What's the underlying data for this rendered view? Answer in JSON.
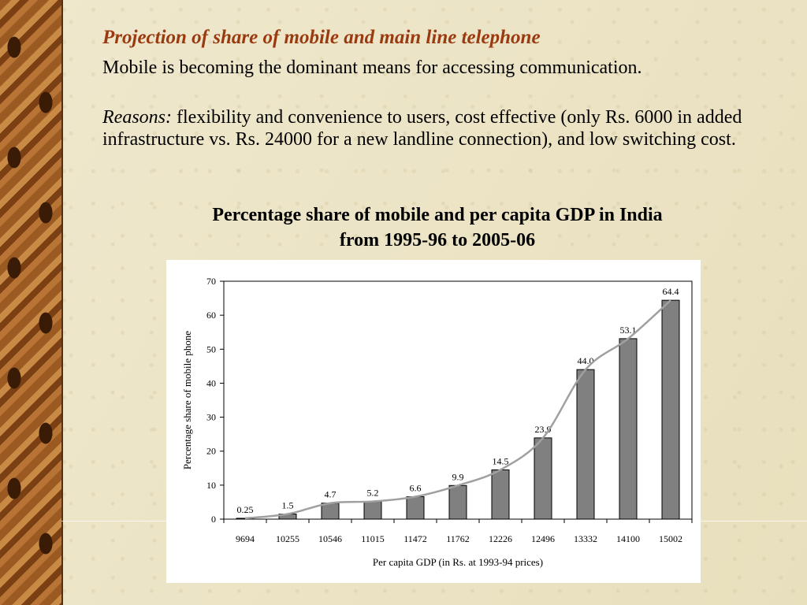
{
  "slide": {
    "title": "Projection of share of mobile and main line telephone",
    "paragraph1": "Mobile is becoming the dominant means for accessing communication.",
    "reasons_label": "Reasons:",
    "paragraph2": " flexibility and convenience to users, cost effective (only Rs. 6000 in added infrastructure vs. Rs. 24000 for a new landline connection), and low switching cost.",
    "chart_heading_line1": "Percentage share of mobile and per capita GDP in India",
    "chart_heading_line2": "from 1995-96 to 2005-06"
  },
  "colors": {
    "title": "#9a3a10",
    "bar_fill": "#808080",
    "trend_line": "#a0a0a0",
    "background": "#ece4c4"
  },
  "chart_data": {
    "type": "bar",
    "categories": [
      "9694",
      "10255",
      "10546",
      "11015",
      "11472",
      "11762",
      "12226",
      "12496",
      "13332",
      "14100",
      "15002"
    ],
    "values": [
      0.25,
      1.5,
      4.7,
      5.2,
      6.6,
      9.9,
      14.5,
      23.9,
      44.0,
      53.1,
      64.4
    ],
    "data_labels": [
      "0.25",
      "1.5",
      "4.7",
      "5.2",
      "6.6",
      "9.9",
      "14.5",
      "23.9",
      "44.0",
      "53.1",
      "64.4"
    ],
    "xlabel": "Per capita GDP (in Rs. at 1993-94 prices)",
    "ylabel": "Percentage share of mobile phone",
    "ylim": [
      0,
      70
    ],
    "yticks": [
      0,
      10,
      20,
      30,
      40,
      50,
      60,
      70
    ],
    "trendline": true,
    "grid": false,
    "legend": "none"
  }
}
